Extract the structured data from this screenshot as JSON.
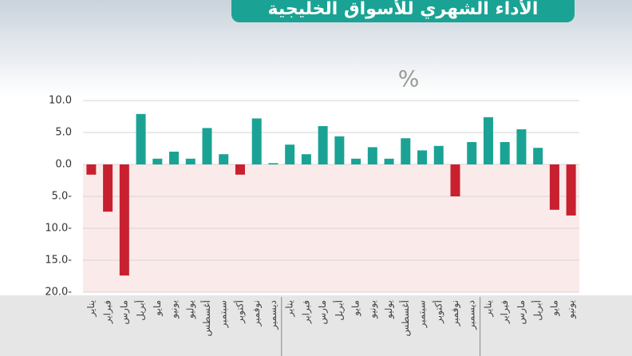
{
  "chart_data": {
    "type": "bar",
    "title": "الأداء الشهري للأسواق الخليجية",
    "unit_label": "%",
    "categories": [
      "يناير",
      "فبراير",
      "مارس",
      "أبريل",
      "مايو",
      "يونيو",
      "يوليو",
      "أغسطس",
      "سبتمبر",
      "أكتوبر",
      "نوفمبر",
      "ديسمبر",
      "يناير",
      "فبراير",
      "مارس",
      "أبريل",
      "مايو",
      "يونيو",
      "يوليو",
      "أغسطس",
      "سبتمبر",
      "أكتوبر",
      "نوفمبر",
      "ديسمبر",
      "يناير",
      "فبراير",
      "مارس",
      "أبريل",
      "مايو",
      "يونيو"
    ],
    "values": [
      -1.6,
      -7.4,
      -17.4,
      7.9,
      0.9,
      2.0,
      0.9,
      5.7,
      1.6,
      -1.6,
      7.2,
      0.2,
      3.1,
      1.6,
      6.0,
      4.4,
      0.9,
      2.7,
      0.9,
      4.1,
      2.2,
      2.9,
      -5.0,
      3.5,
      7.4,
      3.5,
      5.5,
      2.6,
      -7.1,
      -8.0
    ],
    "positive_color": "#1aa394",
    "negative_color": "#c8202f",
    "ylim": [
      -20,
      10
    ],
    "yticks": [
      {
        "value": 10,
        "label": "10.0"
      },
      {
        "value": 5,
        "label": "5.0"
      },
      {
        "value": 0,
        "label": "0.0"
      },
      {
        "value": -5,
        "label": "5.0-"
      },
      {
        "value": -10,
        "label": "10.0-"
      },
      {
        "value": -15,
        "label": "15.0-"
      },
      {
        "value": -20,
        "label": "20.0-"
      }
    ],
    "grid": true
  }
}
